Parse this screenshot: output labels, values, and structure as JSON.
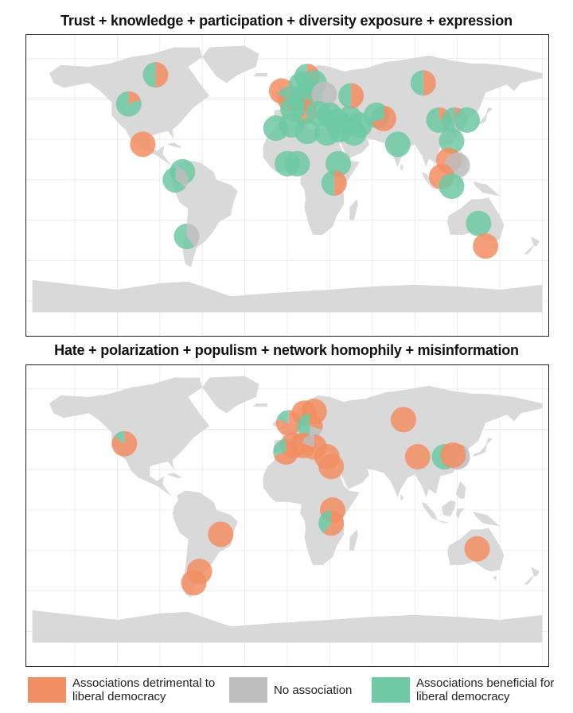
{
  "colors": {
    "detrimental": "#f28e63",
    "none": "#bdbdbd",
    "beneficial": "#6fc9a4",
    "land": "#d9d9d9",
    "grid": "#ececec"
  },
  "panels": [
    {
      "title": "Trust + knowledge + participation + diversity exposure + expression",
      "markers": [
        {
          "lon": 14,
          "lat": 64,
          "shares": [
            0.5,
            0,
            0.5
          ]
        },
        {
          "lon": -112,
          "lat": 47,
          "shares": [
            0.2,
            0,
            0.8
          ]
        },
        {
          "lon": -93,
          "lat": 65,
          "shares": [
            0.5,
            0,
            0.5
          ]
        },
        {
          "lon": -102,
          "lat": 22,
          "shares": [
            1,
            0,
            0
          ]
        },
        {
          "lon": -74,
          "lat": 5,
          "shares": [
            0,
            0,
            1
          ]
        },
        {
          "lon": -79,
          "lat": 0,
          "shares": [
            0,
            0.35,
            0.65
          ]
        },
        {
          "lon": -71,
          "lat": -35,
          "shares": [
            0,
            0.4,
            0.6
          ]
        },
        {
          "lon": -4,
          "lat": 55,
          "shares": [
            1,
            0,
            0
          ]
        },
        {
          "lon": 2,
          "lat": 50,
          "shares": [
            0.8,
            0,
            0.2
          ]
        },
        {
          "lon": 10,
          "lat": 51,
          "shares": [
            0.6,
            0,
            0.4
          ]
        },
        {
          "lon": 16,
          "lat": 52,
          "shares": [
            0,
            0,
            1
          ]
        },
        {
          "lon": 10,
          "lat": 59,
          "shares": [
            0,
            0,
            1
          ]
        },
        {
          "lon": 19,
          "lat": 60,
          "shares": [
            0,
            0,
            1
          ]
        },
        {
          "lon": 26,
          "lat": 53,
          "shares": [
            0,
            1,
            0
          ]
        },
        {
          "lon": 4,
          "lat": 44,
          "shares": [
            0,
            0,
            1
          ]
        },
        {
          "lon": 12,
          "lat": 42,
          "shares": [
            0.6,
            0,
            0.4
          ]
        },
        {
          "lon": 22,
          "lat": 41,
          "shares": [
            0,
            0,
            1
          ]
        },
        {
          "lon": 30,
          "lat": 40,
          "shares": [
            0,
            0,
            1
          ]
        },
        {
          "lon": 35,
          "lat": 36,
          "shares": [
            0,
            0,
            1
          ]
        },
        {
          "lon": 44,
          "lat": 38,
          "shares": [
            0,
            0,
            1
          ]
        },
        {
          "lon": 51,
          "lat": 34,
          "shares": [
            0,
            0,
            1
          ]
        },
        {
          "lon": -8,
          "lat": 32,
          "shares": [
            0,
            0,
            1
          ]
        },
        {
          "lon": 3,
          "lat": 34,
          "shares": [
            0,
            0,
            1
          ]
        },
        {
          "lon": 14,
          "lat": 30,
          "shares": [
            0,
            0,
            1
          ]
        },
        {
          "lon": 28,
          "lat": 29,
          "shares": [
            0,
            0,
            1
          ]
        },
        {
          "lon": 37,
          "lat": 31,
          "shares": [
            0,
            0,
            1
          ]
        },
        {
          "lon": 47,
          "lat": 29,
          "shares": [
            0,
            0,
            1
          ]
        },
        {
          "lon": 45,
          "lat": 52,
          "shares": [
            0.5,
            0,
            0.5
          ]
        },
        {
          "lon": 63,
          "lat": 40,
          "shares": [
            0,
            0,
            1
          ]
        },
        {
          "lon": 68,
          "lat": 38,
          "shares": [
            0.7,
            0,
            0.3
          ]
        },
        {
          "lon": 78,
          "lat": 22,
          "shares": [
            0,
            0,
            1
          ]
        },
        {
          "lon": 0,
          "lat": 10,
          "shares": [
            0,
            0,
            1
          ]
        },
        {
          "lon": 7,
          "lat": 10,
          "shares": [
            0,
            0,
            1
          ]
        },
        {
          "lon": 36,
          "lat": 10,
          "shares": [
            0,
            0,
            1
          ]
        },
        {
          "lon": 33,
          "lat": -2,
          "shares": [
            0.5,
            0,
            0.5
          ]
        },
        {
          "lon": 96,
          "lat": 60,
          "shares": [
            0.5,
            0,
            0.5
          ]
        },
        {
          "lon": 107,
          "lat": 37,
          "shares": [
            0.2,
            0,
            0.8
          ]
        },
        {
          "lon": 118,
          "lat": 37,
          "shares": [
            0.15,
            0.35,
            0.5
          ]
        },
        {
          "lon": 127,
          "lat": 37,
          "shares": [
            0,
            0,
            1
          ]
        },
        {
          "lon": 116,
          "lat": 24,
          "shares": [
            0,
            0,
            1
          ]
        },
        {
          "lon": 114,
          "lat": 12,
          "shares": [
            1,
            0,
            0
          ]
        },
        {
          "lon": 120,
          "lat": 9,
          "shares": [
            0,
            1,
            0
          ]
        },
        {
          "lon": 109,
          "lat": 2,
          "shares": [
            1,
            0,
            0
          ]
        },
        {
          "lon": 116,
          "lat": -4,
          "shares": [
            0,
            0,
            1
          ]
        },
        {
          "lon": 135,
          "lat": -27,
          "shares": [
            0,
            0,
            1
          ]
        },
        {
          "lon": 140,
          "lat": -41,
          "shares": [
            1,
            0,
            0
          ]
        }
      ]
    },
    {
      "title": "Hate + polarization + populism + network homophily + misinformation",
      "markers": [
        {
          "lon": -115,
          "lat": 41,
          "shares": [
            0.85,
            0,
            0.15
          ]
        },
        {
          "lon": -47,
          "lat": -15,
          "shares": [
            1,
            0,
            0
          ]
        },
        {
          "lon": -62,
          "lat": -38,
          "shares": [
            1,
            0,
            0
          ]
        },
        {
          "lon": -66,
          "lat": -45,
          "shares": [
            1,
            0,
            0
          ]
        },
        {
          "lon": 1,
          "lat": 54,
          "shares": [
            0.8,
            0,
            0.2
          ]
        },
        {
          "lon": 4,
          "lat": 40,
          "shares": [
            1,
            0,
            0
          ]
        },
        {
          "lon": -1,
          "lat": 36,
          "shares": [
            0.7,
            0,
            0.3
          ]
        },
        {
          "lon": 12,
          "lat": 60,
          "shares": [
            1,
            0,
            0
          ]
        },
        {
          "lon": 19,
          "lat": 61,
          "shares": [
            1,
            0,
            0
          ]
        },
        {
          "lon": 16,
          "lat": 52,
          "shares": [
            0.3,
            0.2,
            0.5
          ]
        },
        {
          "lon": 11,
          "lat": 40,
          "shares": [
            1,
            0,
            0
          ]
        },
        {
          "lon": 19,
          "lat": 39,
          "shares": [
            0.8,
            0.2,
            0
          ]
        },
        {
          "lon": 28,
          "lat": 33,
          "shares": [
            1,
            0,
            0
          ]
        },
        {
          "lon": 31,
          "lat": 27,
          "shares": [
            1,
            0,
            0
          ]
        },
        {
          "lon": 32,
          "lat": 0,
          "shares": [
            1,
            0,
            0
          ]
        },
        {
          "lon": 31,
          "lat": -8,
          "shares": [
            0.6,
            0,
            0.4
          ]
        },
        {
          "lon": 82,
          "lat": 56,
          "shares": [
            1,
            0,
            0
          ]
        },
        {
          "lon": 92,
          "lat": 33,
          "shares": [
            1,
            0,
            0
          ]
        },
        {
          "lon": 111,
          "lat": 33,
          "shares": [
            0.4,
            0,
            0.6
          ]
        },
        {
          "lon": 120,
          "lat": 33,
          "shares": [
            0.1,
            0.9,
            0
          ]
        },
        {
          "lon": 117,
          "lat": 34,
          "shares": [
            1,
            0,
            0
          ]
        },
        {
          "lon": 134,
          "lat": -24,
          "shares": [
            1,
            0,
            0
          ]
        }
      ]
    }
  ],
  "legend": {
    "detrimental": "Associations detrimental to liberal democracy",
    "none": "No association",
    "beneficial": "Associations beneficial for liberal democracy"
  }
}
